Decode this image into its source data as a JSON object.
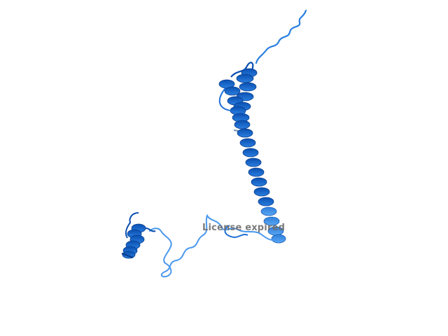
{
  "viewer": {
    "watermark_text": "License expired",
    "background_color": "#ffffff",
    "ribbon_color_dark": "#0a4fb0",
    "ribbon_color_mid": "#1f6fd6",
    "ribbon_color_light": "#4a98ee"
  }
}
